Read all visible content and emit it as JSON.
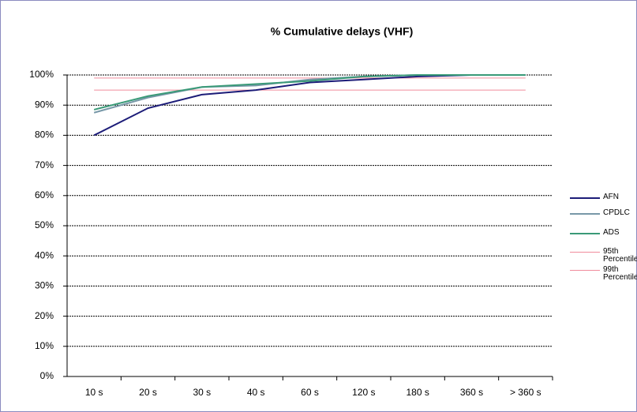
{
  "chart_data": {
    "type": "line",
    "title": "% Cumulative delays (VHF)",
    "categories": [
      "10 s",
      "20 s",
      "30 s",
      "40 s",
      "60 s",
      "120 s",
      "180 s",
      "360 s",
      "> 360 s"
    ],
    "series": [
      {
        "name": "AFN",
        "color": "#1c1c78",
        "values": [
          80,
          89,
          93.5,
          95,
          97.5,
          98.5,
          99.5,
          100,
          100
        ]
      },
      {
        "name": "CPDLC",
        "color": "#7898a8",
        "values": [
          87.5,
          92.5,
          96,
          96.5,
          98.5,
          99.5,
          100,
          100,
          100
        ]
      },
      {
        "name": "ADS",
        "color": "#3a9a78",
        "values": [
          88.5,
          93,
          96,
          97,
          98,
          99.5,
          100,
          100,
          100
        ]
      },
      {
        "name": "95th Percentile",
        "color": "#f08c9c",
        "values": [
          95,
          95,
          95,
          95,
          95,
          95,
          95,
          95,
          95
        ]
      },
      {
        "name": "99th Percentile",
        "color": "#f08c9c",
        "values": [
          99,
          99,
          99,
          99,
          99,
          99,
          99,
          99,
          99
        ]
      }
    ],
    "ylim": [
      0,
      100
    ],
    "yticks": [
      {
        "value": 0,
        "label": "0%"
      },
      {
        "value": 10,
        "label": "10%"
      },
      {
        "value": 20,
        "label": "20%"
      },
      {
        "value": 30,
        "label": "30%"
      },
      {
        "value": 40,
        "label": "40%"
      },
      {
        "value": 50,
        "label": "50%"
      },
      {
        "value": 60,
        "label": "60%"
      },
      {
        "value": 70,
        "label": "70%"
      },
      {
        "value": 80,
        "label": "80%"
      },
      {
        "value": 90,
        "label": "90%"
      },
      {
        "value": 100,
        "label": "100%"
      }
    ],
    "grid": true,
    "legend": "right"
  }
}
